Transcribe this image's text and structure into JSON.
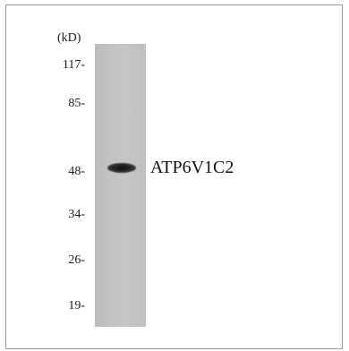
{
  "blot": {
    "unit_label": "(kD)",
    "markers": [
      {
        "label": "117-",
        "kda": 117
      },
      {
        "label": "85-",
        "kda": 85
      },
      {
        "label": "48-",
        "kda": 48
      },
      {
        "label": "34-",
        "kda": 34
      },
      {
        "label": "26-",
        "kda": 26
      },
      {
        "label": "19-",
        "kda": 19
      }
    ],
    "band_label": "ATP6V1C2"
  }
}
